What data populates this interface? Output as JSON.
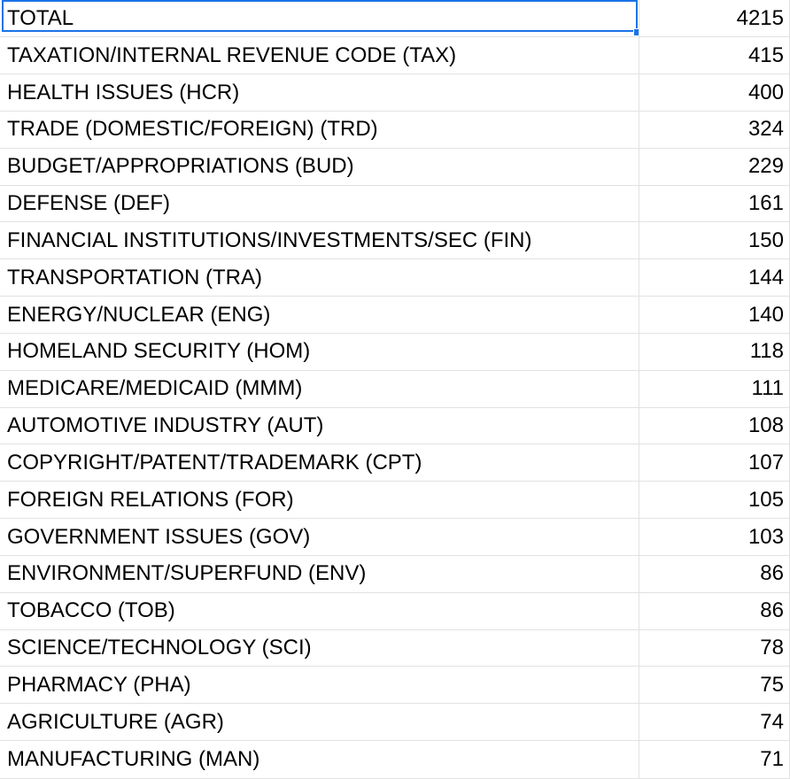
{
  "accent_color": "#1a73e8",
  "rows": [
    {
      "label": "TOTAL",
      "value": "4215"
    },
    {
      "label": "TAXATION/INTERNAL REVENUE CODE (TAX)",
      "value": "415"
    },
    {
      "label": "HEALTH ISSUES (HCR)",
      "value": "400"
    },
    {
      "label": "TRADE (DOMESTIC/FOREIGN) (TRD)",
      "value": "324"
    },
    {
      "label": "BUDGET/APPROPRIATIONS (BUD)",
      "value": "229"
    },
    {
      "label": "DEFENSE (DEF)",
      "value": "161"
    },
    {
      "label": "FINANCIAL INSTITUTIONS/INVESTMENTS/SEC (FIN)",
      "value": "150"
    },
    {
      "label": "TRANSPORTATION (TRA)",
      "value": "144"
    },
    {
      "label": "ENERGY/NUCLEAR (ENG)",
      "value": "140"
    },
    {
      "label": "HOMELAND SECURITY (HOM)",
      "value": "118"
    },
    {
      "label": "MEDICARE/MEDICAID (MMM)",
      "value": "111"
    },
    {
      "label": "AUTOMOTIVE INDUSTRY (AUT)",
      "value": "108"
    },
    {
      "label": "COPYRIGHT/PATENT/TRADEMARK (CPT)",
      "value": "107"
    },
    {
      "label": "FOREIGN RELATIONS (FOR)",
      "value": "105"
    },
    {
      "label": "GOVERNMENT ISSUES (GOV)",
      "value": "103"
    },
    {
      "label": "ENVIRONMENT/SUPERFUND (ENV)",
      "value": "86"
    },
    {
      "label": "TOBACCO (TOB)",
      "value": "86"
    },
    {
      "label": "SCIENCE/TECHNOLOGY (SCI)",
      "value": "78"
    },
    {
      "label": "PHARMACY (PHA)",
      "value": "75"
    },
    {
      "label": "AGRICULTURE (AGR)",
      "value": "74"
    },
    {
      "label": "MANUFACTURING (MAN)",
      "value": "71"
    }
  ]
}
